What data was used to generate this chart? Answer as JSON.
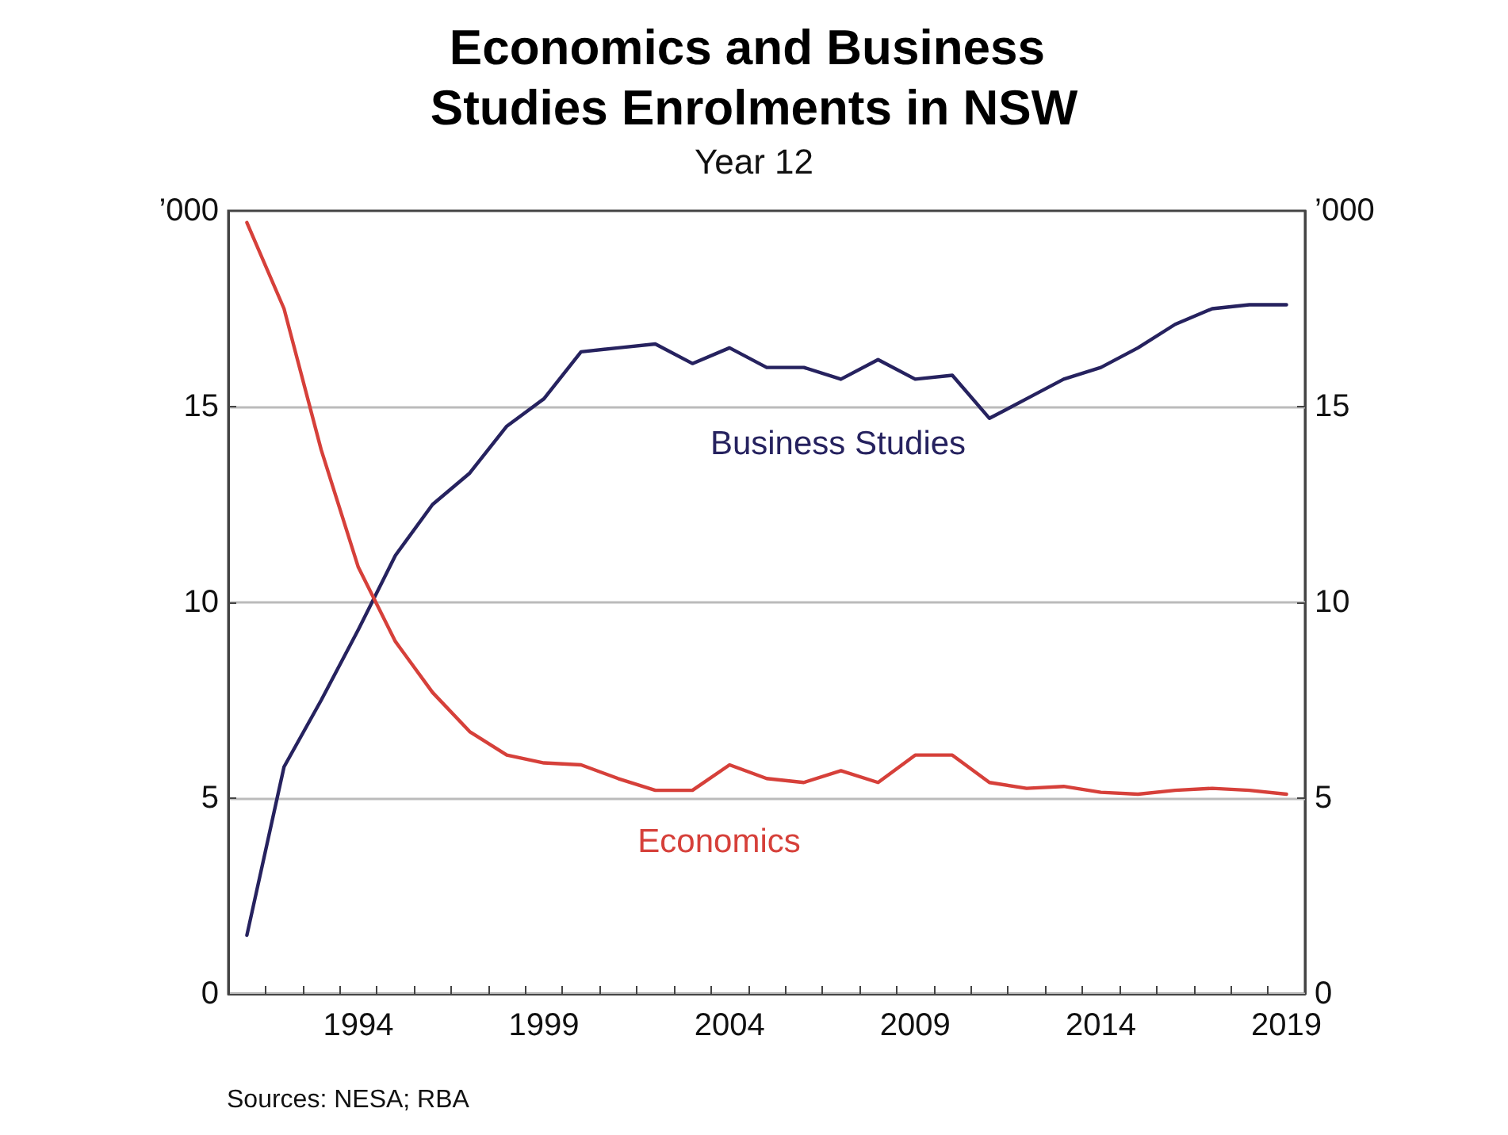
{
  "chart_data": {
    "type": "line",
    "title": "Economics and Business Studies Enrolments in NSW",
    "subtitle": "Year 12",
    "categories": [
      null,
      null,
      null,
      "1994",
      null,
      null,
      null,
      null,
      "1999",
      null,
      null,
      null,
      null,
      "2004",
      null,
      null,
      null,
      null,
      "2009",
      null,
      null,
      null,
      null,
      "2014",
      null,
      null,
      null,
      null,
      "2019"
    ],
    "series": [
      {
        "name": "Business Studies",
        "color": "#26225f",
        "values": [
          1.5,
          5.8,
          7.5,
          9.3,
          11.2,
          12.5,
          13.3,
          14.5,
          15.2,
          16.4,
          16.5,
          16.6,
          16.1,
          16.5,
          16.0,
          16.0,
          15.7,
          16.2,
          15.7,
          15.8,
          14.7,
          15.2,
          15.7,
          16.0,
          16.5,
          17.1,
          17.5,
          17.6,
          17.6
        ]
      },
      {
        "name": "Economics",
        "color": "#d6403a",
        "values": [
          19.7,
          17.5,
          13.9,
          10.9,
          9.0,
          7.7,
          6.7,
          6.1,
          5.9,
          5.85,
          5.5,
          5.2,
          5.2,
          5.85,
          5.5,
          5.4,
          5.7,
          5.4,
          6.1,
          6.1,
          5.4,
          5.25,
          5.3,
          5.15,
          5.1,
          5.2,
          5.25,
          5.2,
          5.1
        ]
      }
    ],
    "ylabel": "’000",
    "y2label": "’000",
    "ylim": [
      0,
      20
    ],
    "yticks": [
      0,
      5,
      10,
      15
    ],
    "y2lim": [
      0,
      20
    ],
    "y2ticks": [
      0,
      5,
      10,
      15
    ],
    "grid": "y",
    "legend": false,
    "marker": "none",
    "line_style": "solid",
    "annotations": [
      "Sources: NESA; RBA"
    ]
  }
}
